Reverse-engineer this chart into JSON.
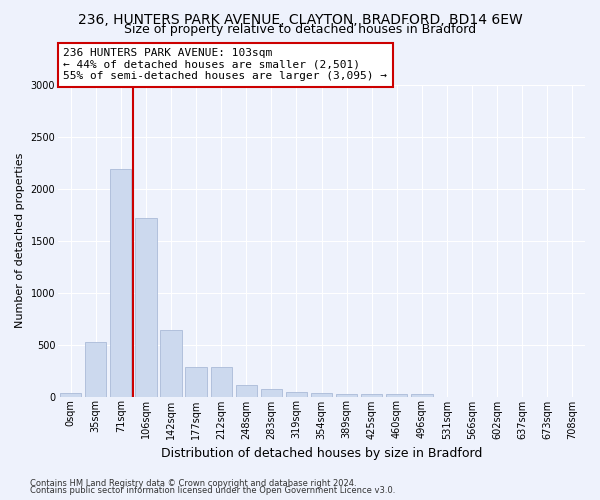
{
  "title1": "236, HUNTERS PARK AVENUE, CLAYTON, BRADFORD, BD14 6EW",
  "title2": "Size of property relative to detached houses in Bradford",
  "xlabel": "Distribution of detached houses by size in Bradford",
  "ylabel": "Number of detached properties",
  "bar_labels": [
    "0sqm",
    "35sqm",
    "71sqm",
    "106sqm",
    "142sqm",
    "177sqm",
    "212sqm",
    "248sqm",
    "283sqm",
    "319sqm",
    "354sqm",
    "389sqm",
    "425sqm",
    "460sqm",
    "496sqm",
    "531sqm",
    "566sqm",
    "602sqm",
    "637sqm",
    "673sqm",
    "708sqm"
  ],
  "bar_heights": [
    30,
    520,
    2190,
    1720,
    635,
    285,
    280,
    115,
    70,
    40,
    30,
    25,
    20,
    25,
    20,
    0,
    0,
    0,
    0,
    0,
    0
  ],
  "bar_color": "#ccd9ee",
  "bar_edge_color": "#aabbd8",
  "vline_color": "#cc0000",
  "annotation_text": "236 HUNTERS PARK AVENUE: 103sqm\n← 44% of detached houses are smaller (2,501)\n55% of semi-detached houses are larger (3,095) →",
  "annotation_box_color": "#ffffff",
  "annotation_box_edge": "#cc0000",
  "ylim": [
    0,
    3000
  ],
  "yticks": [
    0,
    500,
    1000,
    1500,
    2000,
    2500,
    3000
  ],
  "footnote1": "Contains HM Land Registry data © Crown copyright and database right 2024.",
  "footnote2": "Contains public sector information licensed under the Open Government Licence v3.0.",
  "bg_color": "#eef2fc",
  "plot_bg_color": "#eef2fc",
  "grid_color": "#ffffff",
  "title1_fontsize": 10,
  "title2_fontsize": 9,
  "xlabel_fontsize": 9,
  "ylabel_fontsize": 8,
  "tick_fontsize": 7,
  "annotation_fontsize": 8,
  "footnote_fontsize": 6
}
